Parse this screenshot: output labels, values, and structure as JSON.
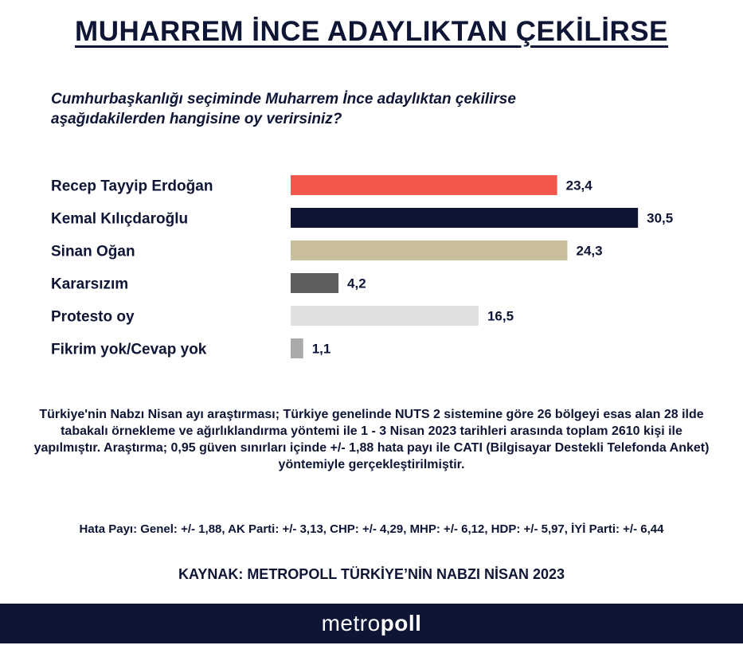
{
  "title": "MUHARREM İNCE ADAYLIKTAN ÇEKİLİRSE",
  "subtitle_line1": "Cumhurbaşkanlığı seçiminde Muharrem İnce adaylıktan çekilirse",
  "subtitle_line2": "aşağıdakilerden hangisine oy verirsiniz?",
  "chart_data": {
    "type": "bar",
    "orientation": "horizontal",
    "categories": [
      "Recep Tayyip Erdoğan",
      "Kemal Kılıçdaroğlu",
      "Sinan Oğan",
      "Kararsızım",
      "Protesto oy",
      "Fikrim yok/Cevap yok"
    ],
    "values": [
      23.4,
      30.5,
      24.3,
      4.2,
      16.5,
      1.1
    ],
    "value_labels": [
      "23,4",
      "30,5",
      "24,3",
      "4,2",
      "16,5",
      "1,1"
    ],
    "colors": [
      "#f2574b",
      "#0e1535",
      "#c9bf9c",
      "#5e5e5e",
      "#e0e0e0",
      "#aaaaaa"
    ],
    "title": "",
    "xlabel": "",
    "ylabel": "",
    "grid": false,
    "legend": "none"
  },
  "methodology": "Türkiye'nin Nabzı Nisan ayı araştırması; Türkiye genelinde NUTS 2 sistemine göre 26 bölgeyi esas alan 28 ilde tabakalı örnekleme ve ağırlıklandırma yöntemi ile 1 - 3 Nisan 2023 tarihleri arasında toplam 2610 kişi ile yapılmıştır. Araştırma; 0,95 güven sınırları içinde +/- 1,88 hata payı ile CATI (Bilgisayar Destekli Telefonda Anket) yöntemiyle gerçekleştirilmiştir.",
  "margin_of_error": "Hata Payı: Genel: +/- 1,88, AK Parti: +/- 3,13, CHP: +/- 4,29, MHP: +/- 6,12, HDP: +/- 5,97, İYİ Parti: +/- 6,44",
  "source": "KAYNAK: METROPOLL TÜRKİYE’NİN NABZI NİSAN 2023",
  "logo": {
    "part1": "metro",
    "part2": "poll"
  }
}
